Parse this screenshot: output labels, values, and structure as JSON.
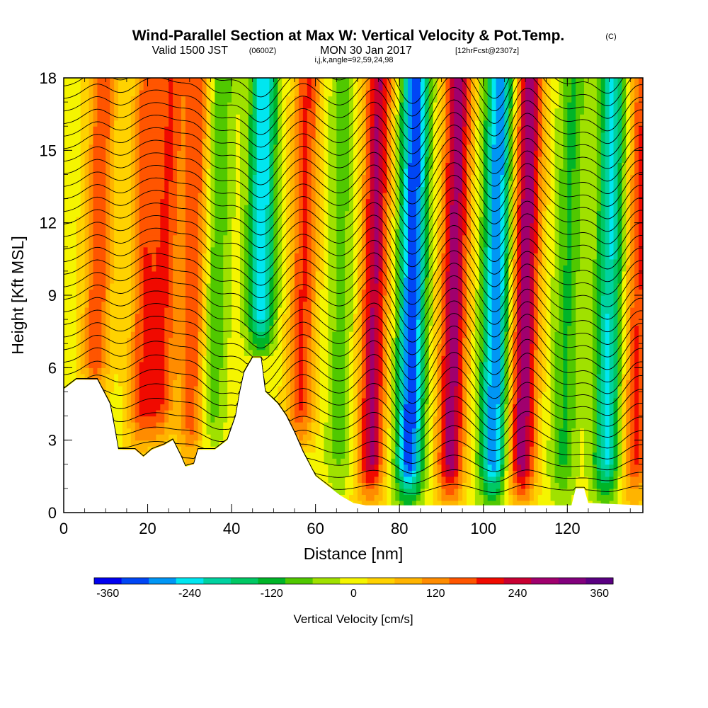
{
  "chart_data": {
    "type": "heatmap",
    "title": "Wind-Parallel Section at Max W: Vertical Velocity & Pot.Temp.",
    "title_unit": "(C)",
    "subtitle_prefix": "Valid 1500 JST",
    "subtitle_z": "(0600Z)",
    "subtitle_date": "MON 30 Jan 2017",
    "subtitle_fcst": "[12hrFcst@2307z]",
    "subtitle_indices": "i,j,k,angle=92,59,24,98",
    "xlabel": "Distance [nm]",
    "ylabel": "Height [Kft MSL]",
    "xlim": [
      0,
      138
    ],
    "ylim": [
      0,
      18
    ],
    "xticks": [
      "0",
      "20",
      "40",
      "60",
      "80",
      "100",
      "120"
    ],
    "yticks": [
      "0",
      "3",
      "6",
      "9",
      "12",
      "15",
      "18"
    ],
    "colorbar": {
      "label": "Vertical Velocity [cm/s]",
      "tick_labels": [
        "-360",
        "-240",
        "-120",
        "0",
        "120",
        "240",
        "360"
      ],
      "colors": [
        "#0000f0",
        "#0046f5",
        "#0096f5",
        "#00e6f0",
        "#00d2a0",
        "#00c864",
        "#00b428",
        "#50c800",
        "#a0e100",
        "#f5f500",
        "#ffd200",
        "#ffb400",
        "#ff8c00",
        "#ff5500",
        "#f00a00",
        "#c80032",
        "#a0006e",
        "#82007d",
        "#5a0082"
      ]
    },
    "terrain": [
      [
        0,
        5.1
      ],
      [
        3,
        5.5
      ],
      [
        8,
        5.5
      ],
      [
        11,
        4.5
      ],
      [
        12,
        3.6
      ],
      [
        13,
        2.6
      ],
      [
        17,
        2.6
      ],
      [
        19,
        2.3
      ],
      [
        21,
        2.6
      ],
      [
        24,
        2.8
      ],
      [
        26,
        3.0
      ],
      [
        28,
        2.3
      ],
      [
        29,
        1.9
      ],
      [
        31,
        2.0
      ],
      [
        32,
        2.6
      ],
      [
        34,
        2.6
      ],
      [
        36,
        2.6
      ],
      [
        39,
        3.0
      ],
      [
        41,
        4.0
      ],
      [
        42,
        5.0
      ],
      [
        43,
        5.8
      ],
      [
        45,
        6.4
      ],
      [
        47,
        6.4
      ],
      [
        48,
        5.0
      ],
      [
        51,
        4.5
      ],
      [
        53,
        4.0
      ],
      [
        55,
        3.3
      ],
      [
        57,
        2.5
      ],
      [
        60,
        1.5
      ],
      [
        63,
        1.1
      ],
      [
        66,
        0.7
      ],
      [
        69,
        0.4
      ],
      [
        72,
        0.3
      ],
      [
        121,
        0.3
      ],
      [
        122,
        1.0
      ],
      [
        124,
        1.0
      ],
      [
        125,
        0.4
      ],
      [
        138,
        0.3
      ]
    ],
    "velocity_bands": [
      {
        "x": 8,
        "w": 170,
        "h0": 4.6,
        "h1": 18,
        "phase": 0.6
      },
      {
        "x": 19,
        "w": 160,
        "h0": 2.3,
        "h1": 18,
        "phase": 0.4
      },
      {
        "x": 24,
        "w": 170,
        "h0": 2.8,
        "h1": 18,
        "phase": 0.8
      },
      {
        "x": 31,
        "w": 170,
        "h0": 2.0,
        "h1": 18,
        "phase": 0.4
      },
      {
        "x": 36,
        "w": -100,
        "h0": 2.6,
        "h1": 18,
        "phase": 0.7
      },
      {
        "x": 47,
        "w": -260,
        "h0": 6.5,
        "h1": 18,
        "phase": 0.3
      },
      {
        "x": 57,
        "w": 180,
        "h0": 2.5,
        "h1": 18,
        "phase": 0.5
      },
      {
        "x": 66,
        "w": -80,
        "h0": 0.7,
        "h1": 18,
        "phase": 0.2
      },
      {
        "x": 74,
        "w": 260,
        "h0": 0.3,
        "h1": 18,
        "phase": 0.5
      },
      {
        "x": 83,
        "w": -340,
        "h0": 0.3,
        "h1": 18,
        "phase": 0.4
      },
      {
        "x": 93,
        "w": 280,
        "h0": 0.3,
        "h1": 18,
        "phase": 0.5
      },
      {
        "x": 103,
        "w": -300,
        "h0": 0.3,
        "h1": 18,
        "phase": 0.4
      },
      {
        "x": 110,
        "w": 290,
        "h0": 0.3,
        "h1": 18,
        "phase": 0.5
      },
      {
        "x": 120,
        "w": -110,
        "h0": 0.3,
        "h1": 18,
        "phase": 0.6
      },
      {
        "x": 130,
        "w": -230,
        "h0": 0.3,
        "h1": 18,
        "phase": 0.4
      },
      {
        "x": 137,
        "w": 180,
        "h0": 0.3,
        "h1": 18,
        "phase": 0.5
      }
    ]
  }
}
